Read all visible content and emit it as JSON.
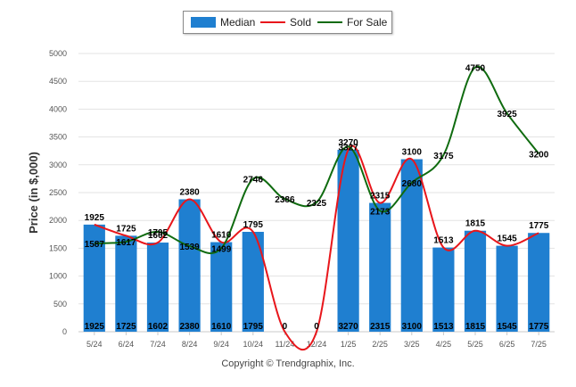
{
  "chart_data": {
    "type": "bar",
    "categories": [
      "5/24",
      "6/24",
      "7/24",
      "8/24",
      "9/24",
      "10/24",
      "11/24",
      "12/24",
      "1/25",
      "2/25",
      "3/25",
      "4/25",
      "5/25",
      "6/25",
      "7/25"
    ],
    "ylabel": "Price (in $,000)",
    "ylim": [
      0,
      5000
    ],
    "yticks": [
      0,
      500,
      1000,
      1500,
      2000,
      2500,
      3000,
      3500,
      4000,
      4500,
      5000
    ],
    "grid": true,
    "legend_position": "top-center",
    "series": [
      {
        "name": "Median",
        "kind": "bar",
        "color": "#1f7fd0",
        "values": [
          1925,
          1725,
          1602,
          2380,
          1610,
          1795,
          0,
          0,
          3270,
          2315,
          3100,
          1513,
          1815,
          1545,
          1775
        ]
      },
      {
        "name": "Sold",
        "kind": "line",
        "color": "#e8161b",
        "values": [
          1925,
          1725,
          1602,
          2380,
          1610,
          1795,
          0,
          0,
          3270,
          2315,
          3100,
          1513,
          1815,
          1545,
          1775
        ]
      },
      {
        "name": "For Sale",
        "kind": "line",
        "color": "#0f6b0f",
        "values": [
          1587,
          1617,
          1795,
          1539,
          1499,
          2746,
          2386,
          2325,
          3327,
          2173,
          2680,
          3175,
          4750,
          3925,
          3200
        ]
      }
    ]
  },
  "legend": {
    "median": "Median",
    "sold": "Sold",
    "for_sale": "For Sale"
  },
  "footer": {
    "copyright": "Copyright © Trendgraphix, Inc."
  }
}
